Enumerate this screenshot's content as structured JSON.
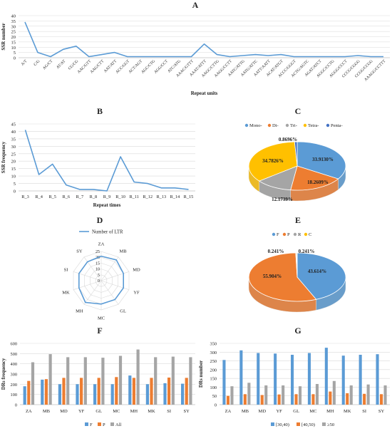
{
  "panel_labels": [
    "A",
    "B",
    "C",
    "D",
    "E",
    "F",
    "G"
  ],
  "colors": {
    "line": "#5b9bd5",
    "blue": "#5b9bd5",
    "orange": "#ed7d31",
    "gray": "#a5a5a5",
    "yellow": "#ffc000",
    "darkblue": "#4472c4",
    "grid": "#d9d9d9",
    "axis": "#bfbfbf",
    "text": "#222222"
  },
  "chart_data": [
    {
      "panel": "A",
      "type": "line",
      "ylabel": "SSR number",
      "xlabel": "Repeat units",
      "ylim": [
        0,
        40
      ],
      "yticks": [
        0,
        5,
        10,
        15,
        20,
        25,
        30,
        35,
        40
      ],
      "categories": [
        "A/T",
        "C/G",
        "AG/CT",
        "AT/AT",
        "CG/CG",
        "AAC/GTT",
        "AAG/CTT",
        "AAT/ATT",
        "ACC/GGT",
        "ACT/AGT",
        "AGC/CTG",
        "AGG/CCT",
        "ATC/ATG",
        "AAAC/GTTT",
        "AAAT/ATTT",
        "AAGC/CTTG",
        "AAGG/CCTT",
        "AATC/ATTG",
        "AATG/ATTC",
        "AATT/AATT",
        "ACAT/ATGT",
        "ACCC/GGGT",
        "ACTG/AGTC",
        "AGAT/ATCT",
        "AGGC/CCTG",
        "AGGG/CCCT",
        "CCCG/CGGG",
        "CCGG/CCGG",
        "AAAGG/CCTTT"
      ],
      "values": [
        34,
        5,
        1,
        8,
        11,
        1,
        3,
        5,
        1,
        1,
        1,
        1,
        1,
        1,
        13,
        3,
        1,
        2,
        3,
        2,
        3,
        1,
        1,
        1,
        1,
        1,
        2,
        1,
        1
      ]
    },
    {
      "panel": "B",
      "type": "line",
      "ylabel": "SSR frequency",
      "xlabel": "Repeat times",
      "ylim": [
        0,
        45
      ],
      "yticks": [
        0,
        5,
        10,
        15,
        20,
        25,
        30,
        35,
        40,
        45
      ],
      "categories": [
        "R_3",
        "R_4",
        "R_5",
        "R_6",
        "R_7",
        "R_8",
        "R_9",
        "R_10",
        "R_11",
        "R_12",
        "R_13",
        "R_14",
        "R_15"
      ],
      "values": [
        41,
        11,
        18,
        4,
        1,
        1,
        0,
        23,
        6,
        5,
        2,
        2,
        1
      ]
    },
    {
      "panel": "C",
      "type": "pie",
      "legend": [
        "Mono-",
        "Di-",
        "Tri-",
        "Tetra-",
        "Penta-"
      ],
      "values": [
        33.913,
        18.2609,
        12.1739,
        34.7826,
        0.8696
      ],
      "labels": [
        "33.9130%",
        "18.2609%",
        "12.1739%",
        "34.7826%",
        "0.8696%"
      ],
      "legend_position": "top"
    },
    {
      "panel": "D",
      "type": "radar",
      "legend": [
        "Number of LTR"
      ],
      "categories": [
        "ZA",
        "MB",
        "MD",
        "YF",
        "GL",
        "MC",
        "MH",
        "MK",
        "SI",
        "SY"
      ],
      "values": [
        21,
        22,
        20,
        20,
        20,
        20,
        23,
        20,
        20,
        20
      ],
      "rmax": 25,
      "rticks": [
        0,
        5,
        10,
        15,
        20,
        25
      ]
    },
    {
      "panel": "E",
      "type": "pie",
      "legend": [
        "F",
        "P",
        "R",
        "C"
      ],
      "values": [
        43.614,
        55.904,
        0.241,
        0.241
      ],
      "labels": [
        "43.614%",
        "55.904%",
        "0.241%",
        "0.241%"
      ],
      "legend_position": "top"
    },
    {
      "panel": "F",
      "type": "bar",
      "ylabel": "DRs frequency",
      "ylim": [
        0,
        600
      ],
      "yticks": [
        0,
        100,
        200,
        300,
        400,
        500,
        600
      ],
      "categories": [
        "ZA",
        "MB",
        "MD",
        "YF",
        "GL",
        "MC",
        "MH",
        "MK",
        "SI",
        "SY"
      ],
      "series": [
        {
          "name": "F",
          "values": [
            180,
            245,
            200,
            200,
            200,
            200,
            285,
            200,
            210,
            205
          ]
        },
        {
          "name": "P",
          "values": [
            232,
            250,
            262,
            262,
            262,
            270,
            262,
            262,
            265,
            262
          ]
        },
        {
          "name": "All",
          "values": [
            415,
            495,
            465,
            465,
            460,
            478,
            540,
            465,
            470,
            465
          ]
        }
      ],
      "legend_position": "bottom"
    },
    {
      "panel": "G",
      "type": "bar",
      "ylabel": "DRs number",
      "ylim": [
        0,
        350
      ],
      "yticks": [
        0,
        50,
        100,
        150,
        200,
        250,
        300,
        350
      ],
      "categories": [
        "ZA",
        "MB",
        "MD",
        "YF",
        "GL",
        "MC",
        "MH",
        "MK",
        "SI",
        "SY"
      ],
      "series": [
        {
          "name": "[30,40)",
          "values": [
            255,
            310,
            295,
            292,
            285,
            295,
            325,
            280,
            285,
            288
          ]
        },
        {
          "name": "[40,50)",
          "values": [
            50,
            60,
            55,
            58,
            60,
            60,
            75,
            65,
            62,
            60
          ]
        },
        {
          "name": "≥50",
          "values": [
            105,
            125,
            110,
            110,
            105,
            118,
            135,
            110,
            115,
            110
          ]
        }
      ],
      "legend_position": "bottom"
    }
  ]
}
